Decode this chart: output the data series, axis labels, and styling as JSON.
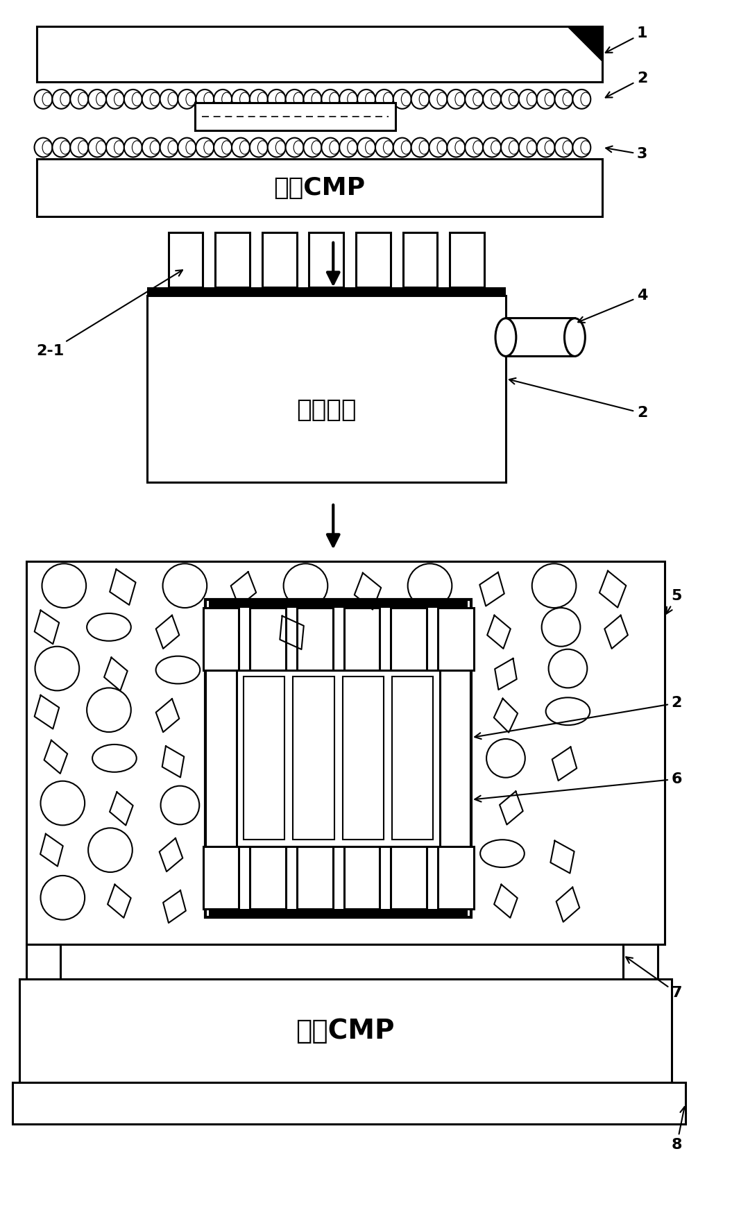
{
  "bg_color": "#ffffff",
  "line_color": "#000000",
  "section1_label": "双面CMP",
  "section2_label": "激光刻蚀",
  "section3_label": "整体CMP",
  "fig_w": 10.55,
  "fig_h": 17.54,
  "dpi": 100
}
